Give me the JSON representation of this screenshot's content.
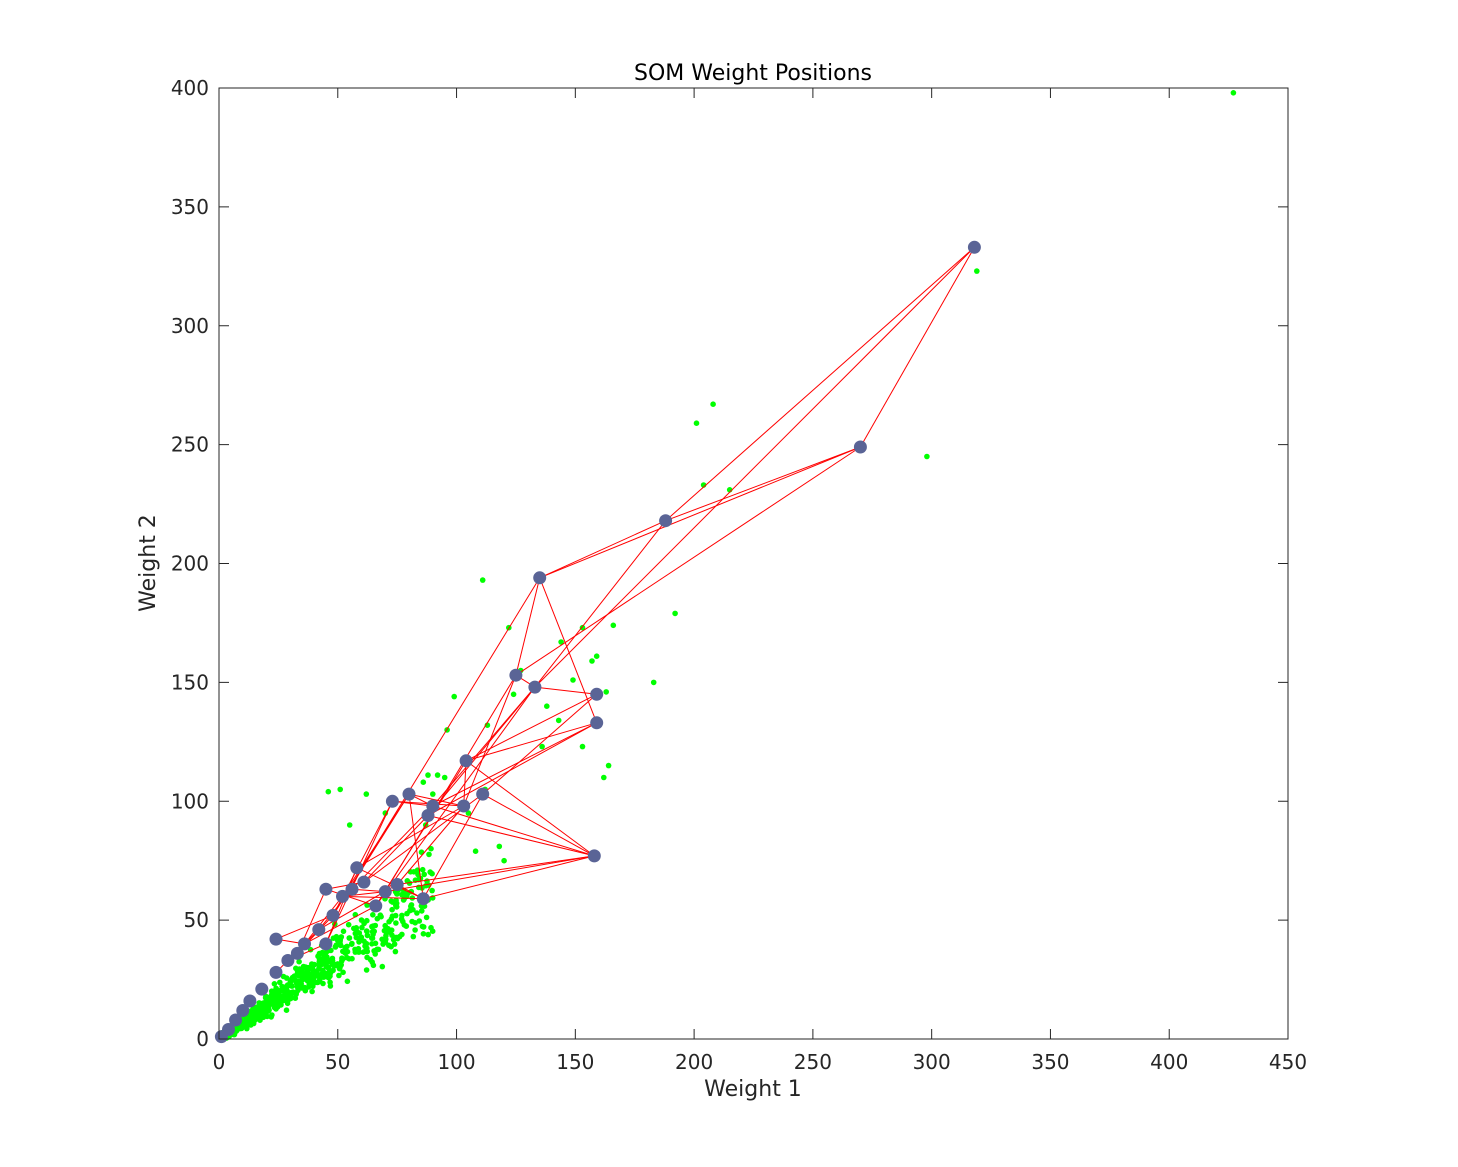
{
  "chart_data": {
    "type": "scatter",
    "title": "SOM Weight Positions",
    "xlabel": "Weight 1",
    "ylabel": "Weight 2",
    "xlim": [
      0,
      450
    ],
    "ylim": [
      0,
      400
    ],
    "xticks": [
      0,
      50,
      100,
      150,
      200,
      250,
      300,
      350,
      400,
      450
    ],
    "yticks": [
      0,
      50,
      100,
      150,
      200,
      250,
      300,
      350,
      400
    ],
    "grid": false,
    "box": true,
    "colors": {
      "data": "#00ff00",
      "neuron": "#5a6496",
      "link": "#ff0000",
      "axis": "#262626"
    },
    "outlier_points": [
      [
        427,
        398
      ],
      [
        319,
        323
      ],
      [
        298,
        245
      ],
      [
        208,
        267
      ],
      [
        201,
        259
      ],
      [
        204,
        233
      ],
      [
        215,
        231
      ],
      [
        192,
        179
      ],
      [
        183,
        150
      ],
      [
        166,
        174
      ],
      [
        164,
        115
      ],
      [
        163,
        146
      ],
      [
        162,
        110
      ],
      [
        159,
        161
      ],
      [
        157,
        159
      ],
      [
        153,
        123
      ],
      [
        153,
        173
      ],
      [
        149,
        151
      ],
      [
        144,
        167
      ],
      [
        143,
        134
      ],
      [
        138,
        140
      ],
      [
        136,
        123
      ],
      [
        127,
        155
      ],
      [
        124,
        145
      ],
      [
        122,
        173
      ],
      [
        120,
        75
      ],
      [
        118,
        81
      ],
      [
        111,
        193
      ],
      [
        113,
        132
      ],
      [
        112,
        105
      ],
      [
        108,
        79
      ],
      [
        105,
        95
      ],
      [
        99,
        144
      ],
      [
        95,
        110
      ],
      [
        96,
        130
      ],
      [
        92,
        111
      ],
      [
        90,
        103
      ],
      [
        88,
        111
      ],
      [
        87,
        90
      ],
      [
        86,
        108
      ],
      [
        78,
        48
      ],
      [
        79,
        60
      ],
      [
        77,
        44
      ],
      [
        77,
        52
      ],
      [
        65,
        31
      ],
      [
        60,
        50
      ],
      [
        51,
        105
      ],
      [
        46,
        104
      ],
      [
        55,
        90
      ],
      [
        62,
        103
      ],
      [
        70,
        95
      ]
    ],
    "dense_cluster": {
      "count": 900,
      "seed": 7,
      "x_max": 90,
      "slope": 0.7,
      "spread": 0.22
    },
    "neurons": [
      [
        1,
        1
      ],
      [
        4,
        4
      ],
      [
        7,
        8
      ],
      [
        10,
        12
      ],
      [
        13,
        16
      ],
      [
        18,
        21
      ],
      [
        24,
        42
      ],
      [
        24,
        28
      ],
      [
        29,
        33
      ],
      [
        33,
        36
      ],
      [
        36,
        40
      ],
      [
        42,
        46
      ],
      [
        45,
        40
      ],
      [
        45,
        63
      ],
      [
        48,
        52
      ],
      [
        52,
        60
      ],
      [
        56,
        63
      ],
      [
        58,
        72
      ],
      [
        61,
        66
      ],
      [
        66,
        56
      ],
      [
        70,
        62
      ],
      [
        75,
        65
      ],
      [
        73,
        100
      ],
      [
        80,
        103
      ],
      [
        86,
        59
      ],
      [
        88,
        94
      ],
      [
        90,
        98
      ],
      [
        103,
        98
      ],
      [
        104,
        117
      ],
      [
        111,
        103
      ],
      [
        125,
        153
      ],
      [
        133,
        148
      ],
      [
        135,
        194
      ],
      [
        158,
        77
      ],
      [
        159,
        145
      ],
      [
        159,
        133
      ],
      [
        188,
        218
      ],
      [
        270,
        249
      ],
      [
        318,
        333
      ]
    ],
    "links": [
      [
        6,
        14
      ],
      [
        6,
        10
      ],
      [
        7,
        11
      ],
      [
        8,
        12
      ],
      [
        9,
        13
      ],
      [
        10,
        15
      ],
      [
        10,
        19
      ],
      [
        11,
        16
      ],
      [
        11,
        21
      ],
      [
        12,
        17
      ],
      [
        12,
        22
      ],
      [
        13,
        18
      ],
      [
        13,
        19
      ],
      [
        14,
        22
      ],
      [
        14,
        23
      ],
      [
        15,
        20
      ],
      [
        15,
        24
      ],
      [
        16,
        20
      ],
      [
        16,
        26
      ],
      [
        17,
        27
      ],
      [
        17,
        24
      ],
      [
        18,
        29
      ],
      [
        18,
        25
      ],
      [
        19,
        28
      ],
      [
        19,
        31
      ],
      [
        20,
        30
      ],
      [
        20,
        33
      ],
      [
        21,
        24
      ],
      [
        21,
        33
      ],
      [
        22,
        27
      ],
      [
        22,
        26
      ],
      [
        23,
        26
      ],
      [
        23,
        27
      ],
      [
        24,
        29
      ],
      [
        24,
        33
      ],
      [
        25,
        31
      ],
      [
        25,
        35
      ],
      [
        25,
        33
      ],
      [
        26,
        31
      ],
      [
        26,
        35
      ],
      [
        27,
        28
      ],
      [
        27,
        30
      ],
      [
        28,
        34
      ],
      [
        28,
        35
      ],
      [
        29,
        34
      ],
      [
        29,
        33
      ],
      [
        30,
        32
      ],
      [
        31,
        34
      ],
      [
        31,
        36
      ],
      [
        32,
        36
      ],
      [
        32,
        35
      ],
      [
        32,
        37
      ],
      [
        14,
        32
      ],
      [
        36,
        37
      ],
      [
        36,
        38
      ],
      [
        30,
        37
      ],
      [
        31,
        38
      ],
      [
        37,
        38
      ],
      [
        26,
        33
      ],
      [
        23,
        24
      ],
      [
        21,
        27
      ],
      [
        28,
        33
      ],
      [
        30,
        31
      ],
      [
        9,
        14
      ],
      [
        15,
        23
      ]
    ]
  }
}
